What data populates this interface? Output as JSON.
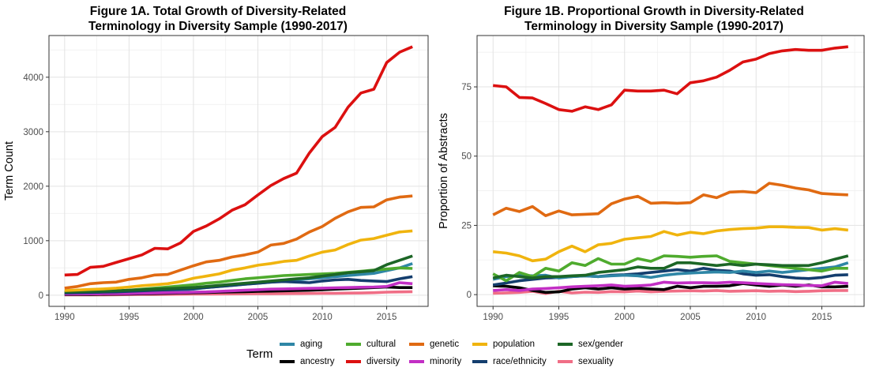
{
  "legend": {
    "title": "Term",
    "entries": [
      {
        "key": "aging",
        "label": "aging",
        "color": "#2e86a6"
      },
      {
        "key": "ancestry",
        "label": "ancestry",
        "color": "#000000"
      },
      {
        "key": "cultural",
        "label": "cultural",
        "color": "#4fab2e"
      },
      {
        "key": "diversity",
        "label": "diversity",
        "color": "#dc1010"
      },
      {
        "key": "genetic",
        "label": "genetic",
        "color": "#e06a12"
      },
      {
        "key": "minority",
        "label": "minority",
        "color": "#c22fc4"
      },
      {
        "key": "population",
        "label": "population",
        "color": "#f0b40e"
      },
      {
        "key": "race_ethnicity",
        "label": "race/ethnicity",
        "color": "#143e6e"
      },
      {
        "key": "sex_gender",
        "label": "sex/gender",
        "color": "#1c6626"
      },
      {
        "key": "sexuality",
        "label": "sexuality",
        "color": "#f06e86"
      }
    ]
  },
  "chart_data": [
    {
      "type": "line",
      "title_lines": [
        "Figure 1A. Total Growth of Diversity-Related",
        "Terminology in Diversity Sample (1990-2017)"
      ],
      "xlabel": "",
      "ylabel": "Term Count",
      "xlim": [
        1990,
        2017
      ],
      "ylim": [
        0,
        4560
      ],
      "x_ticks": [
        1990,
        1995,
        2000,
        2005,
        2010,
        2015
      ],
      "y_ticks": [
        0,
        1000,
        2000,
        3000,
        4000
      ],
      "grid": true,
      "x": [
        1990,
        1991,
        1992,
        1993,
        1994,
        1995,
        1996,
        1997,
        1998,
        1999,
        2000,
        2001,
        2002,
        2003,
        2004,
        2005,
        2006,
        2007,
        2008,
        2009,
        2010,
        2011,
        2012,
        2013,
        2014,
        2015,
        2016,
        2017
      ],
      "series": [
        {
          "key": "sexuality",
          "values": [
            5,
            5,
            6,
            7,
            8,
            10,
            12,
            13,
            15,
            17,
            19,
            20,
            22,
            24,
            25,
            27,
            28,
            30,
            31,
            33,
            35,
            36,
            38,
            40,
            45,
            55,
            60,
            65
          ]
        },
        {
          "key": "aging",
          "values": [
            20,
            25,
            30,
            35,
            40,
            50,
            60,
            70,
            80,
            90,
            110,
            140,
            160,
            180,
            200,
            220,
            240,
            260,
            280,
            300,
            320,
            340,
            360,
            380,
            400,
            450,
            500,
            580
          ]
        },
        {
          "key": "cultural",
          "values": [
            40,
            50,
            60,
            70,
            80,
            90,
            110,
            130,
            150,
            170,
            190,
            220,
            240,
            270,
            300,
            320,
            340,
            360,
            370,
            380,
            390,
            400,
            420,
            440,
            460,
            480,
            500,
            490
          ]
        },
        {
          "key": "ancestry",
          "values": [
            10,
            12,
            14,
            16,
            18,
            20,
            25,
            30,
            35,
            40,
            45,
            50,
            55,
            60,
            65,
            70,
            75,
            80,
            85,
            90,
            100,
            110,
            120,
            130,
            140,
            150,
            140,
            140
          ]
        },
        {
          "key": "minority",
          "values": [
            20,
            22,
            24,
            26,
            28,
            30,
            35,
            40,
            45,
            50,
            55,
            60,
            70,
            80,
            90,
            100,
            110,
            115,
            120,
            125,
            130,
            135,
            140,
            145,
            150,
            160,
            230,
            210
          ]
        },
        {
          "key": "race_ethnicity",
          "values": [
            40,
            45,
            50,
            55,
            60,
            70,
            80,
            90,
            100,
            110,
            120,
            140,
            160,
            180,
            200,
            220,
            240,
            250,
            240,
            230,
            260,
            280,
            290,
            270,
            260,
            250,
            300,
            340
          ]
        },
        {
          "key": "sex_gender",
          "values": [
            60,
            65,
            70,
            75,
            80,
            90,
            100,
            110,
            120,
            130,
            140,
            160,
            180,
            200,
            220,
            240,
            260,
            280,
            300,
            320,
            350,
            380,
            410,
            430,
            450,
            560,
            640,
            720
          ]
        },
        {
          "key": "population",
          "values": [
            85,
            95,
            105,
            115,
            130,
            150,
            175,
            190,
            210,
            250,
            310,
            350,
            390,
            460,
            500,
            550,
            580,
            620,
            640,
            720,
            790,
            830,
            930,
            1010,
            1040,
            1100,
            1160,
            1180
          ]
        },
        {
          "key": "genetic",
          "values": [
            130,
            160,
            210,
            230,
            240,
            290,
            320,
            370,
            380,
            460,
            540,
            610,
            640,
            700,
            740,
            790,
            920,
            950,
            1030,
            1160,
            1260,
            1410,
            1530,
            1610,
            1620,
            1750,
            1800,
            1820
          ]
        },
        {
          "key": "diversity",
          "values": [
            370,
            380,
            510,
            530,
            600,
            670,
            740,
            860,
            850,
            960,
            1170,
            1270,
            1400,
            1560,
            1660,
            1840,
            2010,
            2140,
            2240,
            2610,
            2910,
            3080,
            3450,
            3710,
            3780,
            4270,
            4460,
            4560
          ]
        }
      ]
    },
    {
      "type": "line",
      "title_lines": [
        "Figure 1B. Proportional Growth in Diversity-Related",
        "Terminology in Diversity Sample (1990-2017)"
      ],
      "xlabel": "",
      "ylabel": "Proportion of Abstracts",
      "xlim": [
        1990,
        2017
      ],
      "ylim": [
        -0.2,
        89.5
      ],
      "x_ticks": [
        1990,
        1995,
        2000,
        2005,
        2010,
        2015
      ],
      "y_ticks": [
        0,
        25,
        50,
        75
      ],
      "grid": true,
      "x": [
        1990,
        1991,
        1992,
        1993,
        1994,
        1995,
        1996,
        1997,
        1998,
        1999,
        2000,
        2001,
        2002,
        2003,
        2004,
        2005,
        2006,
        2007,
        2008,
        2009,
        2010,
        2011,
        2012,
        2013,
        2014,
        2015,
        2016,
        2017
      ],
      "series": [
        {
          "key": "sexuality",
          "values": [
            0.5,
            0.6,
            0.8,
            1.2,
            0.4,
            1.2,
            0.6,
            0.9,
            0.8,
            1.1,
            1.0,
            1.3,
            1.0,
            1.2,
            1.3,
            1.4,
            1.3,
            1.5,
            1.2,
            1.3,
            1.4,
            1.2,
            1.3,
            1.1,
            1.2,
            1.4,
            1.5,
            1.5
          ]
        },
        {
          "key": "ancestry",
          "values": [
            3.2,
            3.0,
            2.5,
            1.5,
            0.8,
            1.0,
            2.0,
            2.5,
            2.0,
            2.5,
            2.0,
            2.3,
            2.0,
            1.8,
            3.0,
            2.5,
            3.0,
            3.0,
            3.2,
            4.0,
            3.5,
            3.0,
            3.5,
            3.0,
            3.5,
            2.8,
            2.8,
            3.0
          ]
        },
        {
          "key": "minority",
          "values": [
            1.5,
            1.8,
            1.5,
            2.0,
            2.2,
            2.5,
            2.8,
            3.0,
            3.2,
            3.5,
            3.0,
            3.2,
            3.5,
            4.5,
            4.2,
            4.3,
            4.3,
            4.2,
            4.5,
            4.3,
            4.0,
            3.8,
            3.6,
            3.5,
            3.3,
            3.2,
            4.5,
            4.0
          ]
        },
        {
          "key": "race_ethnicity",
          "values": [
            3.5,
            4.2,
            5.0,
            5.5,
            6.0,
            6.2,
            6.5,
            6.8,
            6.5,
            7.0,
            7.2,
            7.5,
            8.0,
            8.5,
            9.0,
            8.5,
            9.5,
            8.8,
            8.5,
            7.5,
            7.0,
            7.2,
            6.5,
            6.0,
            5.8,
            6.2,
            7.0,
            7.2
          ]
        },
        {
          "key": "aging",
          "values": [
            5.5,
            6.5,
            7.0,
            6.8,
            7.0,
            6.0,
            6.5,
            6.8,
            6.5,
            6.8,
            7.0,
            6.8,
            6.2,
            7.0,
            7.5,
            7.8,
            8.0,
            8.2,
            8.0,
            8.5,
            8.0,
            8.5,
            8.0,
            8.5,
            9.0,
            9.5,
            10.0,
            11.5
          ]
        },
        {
          "key": "cultural",
          "values": [
            7.5,
            5.0,
            8.0,
            6.5,
            9.5,
            8.5,
            11.5,
            10.5,
            13.0,
            11.0,
            11.0,
            13.0,
            12.0,
            14.0,
            13.8,
            13.5,
            13.8,
            14.0,
            12.0,
            11.5,
            11.0,
            10.5,
            10.0,
            9.5,
            9.0,
            8.5,
            9.5,
            9.5
          ]
        },
        {
          "key": "sex_gender",
          "values": [
            6.0,
            7.0,
            6.5,
            6.0,
            6.5,
            6.5,
            6.8,
            7.0,
            8.0,
            8.5,
            9.0,
            10.0,
            9.5,
            9.5,
            11.5,
            11.5,
            11.0,
            10.5,
            11.0,
            10.5,
            11.0,
            10.8,
            10.5,
            10.5,
            10.5,
            11.5,
            12.8,
            14.0
          ]
        },
        {
          "key": "population",
          "values": [
            15.5,
            15.0,
            14.0,
            12.2,
            12.8,
            15.5,
            17.5,
            15.5,
            18.0,
            18.5,
            20.0,
            20.5,
            21.0,
            22.8,
            21.5,
            22.5,
            22.0,
            23.0,
            23.5,
            23.8,
            24.0,
            24.5,
            24.5,
            24.3,
            24.2,
            23.3,
            23.8,
            23.3
          ]
        },
        {
          "key": "genetic",
          "values": [
            28.8,
            31.2,
            30.0,
            31.8,
            28.5,
            30.2,
            28.8,
            29.0,
            29.2,
            32.8,
            34.5,
            35.5,
            33.0,
            33.2,
            33.0,
            33.2,
            36.0,
            35.0,
            37.0,
            37.2,
            36.8,
            40.2,
            39.5,
            38.5,
            37.8,
            36.5,
            36.2,
            36.0
          ]
        },
        {
          "key": "diversity",
          "values": [
            75.5,
            75.0,
            71.2,
            71.0,
            69.0,
            66.8,
            66.2,
            67.8,
            66.8,
            68.5,
            73.8,
            73.5,
            73.5,
            73.8,
            72.5,
            76.5,
            77.2,
            78.5,
            81.0,
            84.0,
            85.0,
            87.0,
            88.0,
            88.5,
            88.2,
            88.2,
            89.0,
            89.5
          ]
        }
      ]
    }
  ]
}
